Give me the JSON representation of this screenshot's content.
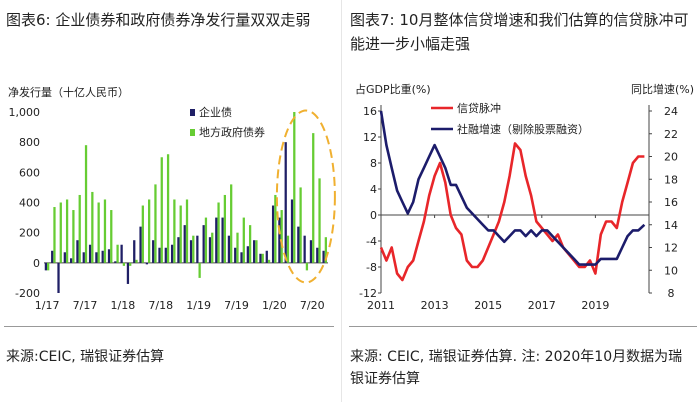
{
  "left": {
    "title": "图表6: 企业债券和政府债券净发行量双双走弱",
    "source": "来源:CEIC, 瑞银证券估算",
    "chart_data": {
      "type": "bar",
      "ylabel": "净发行量（十亿人民币）",
      "ylim": [
        -200,
        1000
      ],
      "yticks": [
        "-200",
        "0",
        "200",
        "400",
        "600",
        "800",
        "1,000"
      ],
      "xticks": [
        "1/17",
        "7/17",
        "1/18",
        "7/18",
        "1/19",
        "7/19",
        "1/20",
        "7/20"
      ],
      "colors": {
        "corporate": "#1f1f66",
        "local": "#66cc33",
        "highlight": "#f0b030"
      },
      "categories": [
        "1/17",
        "2/17",
        "3/17",
        "4/17",
        "5/17",
        "6/17",
        "7/17",
        "8/17",
        "9/17",
        "10/17",
        "11/17",
        "12/17",
        "1/18",
        "2/18",
        "3/18",
        "4/18",
        "5/18",
        "6/18",
        "7/18",
        "8/18",
        "9/18",
        "10/18",
        "11/18",
        "12/18",
        "1/19",
        "2/19",
        "3/19",
        "4/19",
        "5/19",
        "6/19",
        "7/19",
        "8/19",
        "9/19",
        "10/19",
        "11/19",
        "12/19",
        "1/20",
        "2/20",
        "3/20",
        "4/20",
        "5/20",
        "6/20",
        "7/20",
        "8/20",
        "9/20"
      ],
      "series": [
        {
          "name": "企业债",
          "values": [
            -50,
            80,
            -200,
            70,
            30,
            150,
            70,
            120,
            70,
            80,
            90,
            10,
            120,
            -140,
            150,
            240,
            -10,
            150,
            100,
            100,
            120,
            170,
            250,
            150,
            180,
            250,
            170,
            300,
            300,
            180,
            100,
            70,
            110,
            150,
            60,
            80,
            380,
            300,
            800,
            420,
            240,
            180,
            150,
            100,
            80
          ]
        },
        {
          "name": "地方政府债券",
          "values": [
            -50,
            370,
            400,
            420,
            350,
            450,
            780,
            470,
            400,
            420,
            350,
            120,
            -20,
            -20,
            20,
            380,
            420,
            520,
            700,
            720,
            420,
            380,
            420,
            180,
            -100,
            300,
            200,
            400,
            450,
            520,
            200,
            300,
            250,
            150,
            60,
            20,
            450,
            350,
            180,
            1000,
            500,
            -50,
            860,
            560,
            170
          ]
        }
      ]
    }
  },
  "right": {
    "title": "图表7: 10月整体信贷增速和我们估算的信贷脉冲可能进一步小幅走强",
    "source": "来源: CEIC, 瑞银证券估算. 注: 2020年10月数据为瑞银证券估算",
    "chart_data": {
      "type": "line",
      "ylabel_left": "占GDP比重(%)",
      "ylabel_right": "同比增速(%)",
      "ylim_left": [
        -12,
        16
      ],
      "ylim_right": [
        8,
        24
      ],
      "yticks_left": [
        "-12",
        "-8",
        "-4",
        "0",
        "4",
        "8",
        "12",
        "16"
      ],
      "yticks_right": [
        "8",
        "10",
        "12",
        "14",
        "16",
        "18",
        "20",
        "22",
        "24"
      ],
      "xticks": [
        "2011",
        "2013",
        "2015",
        "2017",
        "2019"
      ],
      "colors": {
        "impulse": "#e8262a",
        "tsf": "#1c1c6b"
      },
      "series": [
        {
          "name": "信贷脉冲",
          "axis": "left",
          "x": [
            2011.0,
            2011.2,
            2011.4,
            2011.6,
            2011.8,
            2012.0,
            2012.2,
            2012.4,
            2012.6,
            2012.8,
            2013.0,
            2013.2,
            2013.4,
            2013.6,
            2013.8,
            2014.0,
            2014.2,
            2014.4,
            2014.6,
            2014.8,
            2015.0,
            2015.2,
            2015.4,
            2015.6,
            2015.8,
            2016.0,
            2016.2,
            2016.4,
            2016.6,
            2016.8,
            2017.0,
            2017.2,
            2017.4,
            2017.6,
            2017.8,
            2018.0,
            2018.2,
            2018.4,
            2018.6,
            2018.8,
            2019.0,
            2019.2,
            2019.4,
            2019.6,
            2019.8,
            2020.0,
            2020.2,
            2020.4,
            2020.6,
            2020.83
          ],
          "values": [
            -5,
            -7,
            -5,
            -9,
            -10,
            -8,
            -7,
            -4,
            -1,
            3,
            6,
            8,
            5,
            0,
            -2,
            -3,
            -7,
            -8,
            -8,
            -7,
            -5,
            -3,
            -1,
            2,
            6,
            11,
            10,
            6,
            3,
            -1,
            -2,
            -3,
            -4,
            -3,
            -5,
            -6,
            -7,
            -8,
            -8,
            -7,
            -9,
            -3,
            -1,
            -1,
            -2,
            2,
            5,
            8,
            9,
            9
          ]
        },
        {
          "name": "社融增速（剔除股票融资）",
          "axis": "right",
          "x": [
            2011.0,
            2011.2,
            2011.4,
            2011.6,
            2011.8,
            2012.0,
            2012.2,
            2012.4,
            2012.6,
            2012.8,
            2013.0,
            2013.2,
            2013.4,
            2013.6,
            2013.8,
            2014.0,
            2014.2,
            2014.4,
            2014.6,
            2014.8,
            2015.0,
            2015.2,
            2015.4,
            2015.6,
            2015.8,
            2016.0,
            2016.2,
            2016.4,
            2016.6,
            2016.8,
            2017.0,
            2017.2,
            2017.4,
            2017.6,
            2017.8,
            2018.0,
            2018.2,
            2018.4,
            2018.6,
            2018.8,
            2019.0,
            2019.2,
            2019.4,
            2019.6,
            2019.8,
            2020.0,
            2020.2,
            2020.4,
            2020.6,
            2020.83
          ],
          "values": [
            24,
            21,
            19,
            17,
            16,
            15,
            16,
            18,
            19,
            20,
            21,
            20,
            19,
            17.5,
            17.5,
            16.5,
            15.5,
            15,
            14.5,
            14,
            13.5,
            13.5,
            13,
            12.5,
            13,
            13.5,
            13.5,
            13,
            13.5,
            13,
            13.5,
            13.5,
            13,
            12.5,
            12,
            11.5,
            11,
            10.5,
            10.5,
            10.5,
            10.5,
            11,
            11,
            11,
            11,
            12,
            13,
            13.5,
            13.5,
            14
          ]
        }
      ]
    }
  }
}
